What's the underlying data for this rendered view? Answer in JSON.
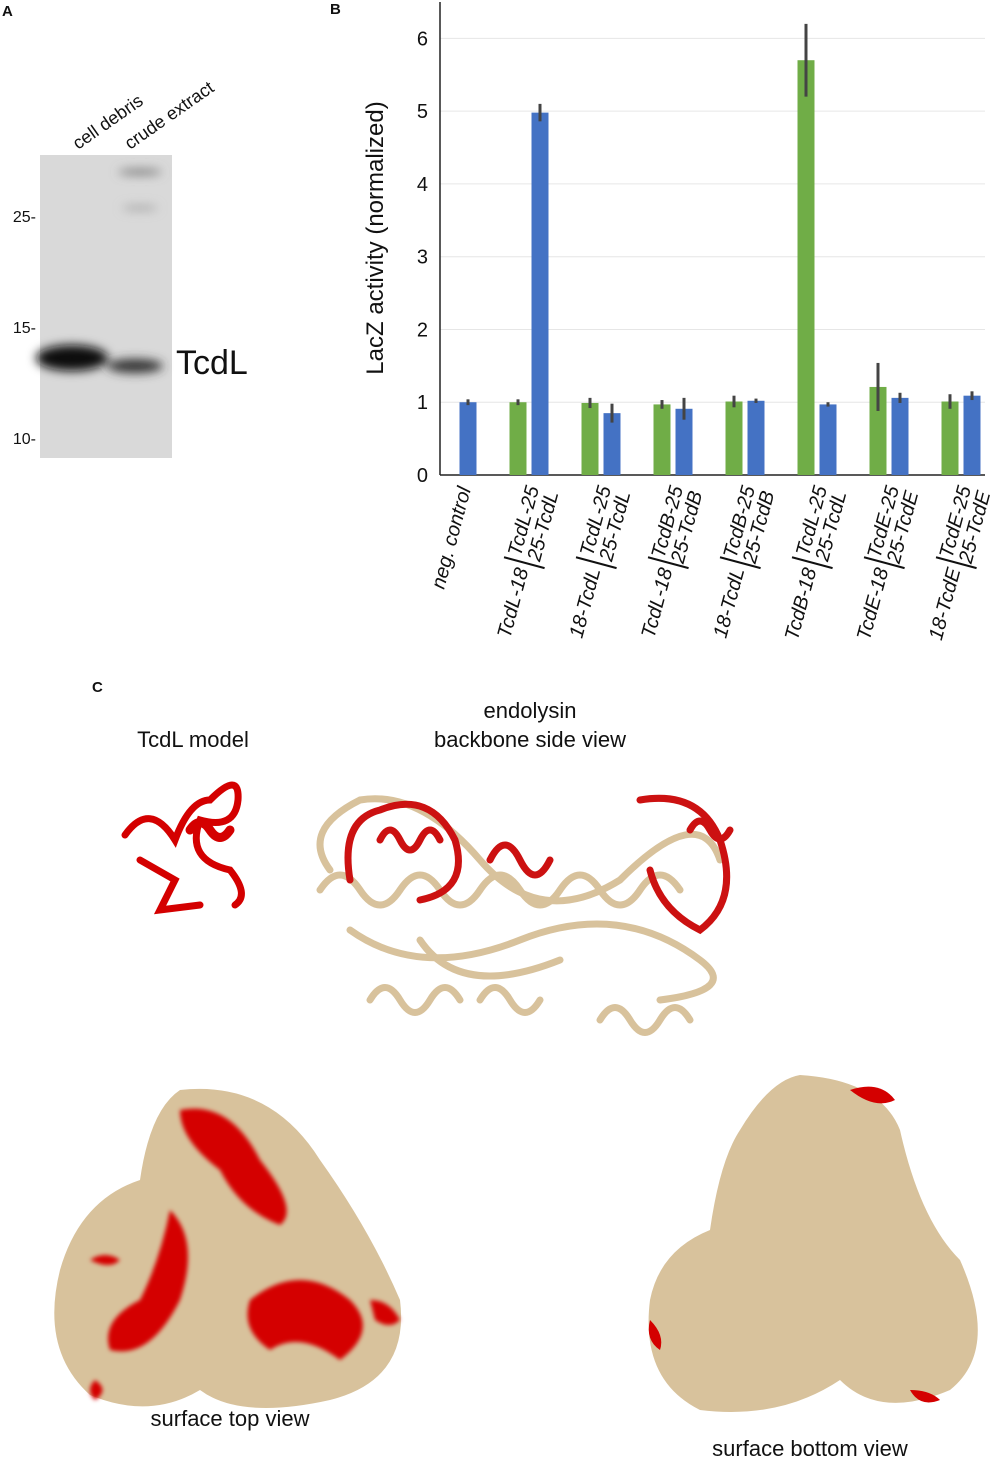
{
  "panel_a": {
    "label": "A",
    "lanes": [
      "cell debris",
      "crude extract"
    ],
    "markers": [
      "25-",
      "15-",
      "10-"
    ],
    "band_label": "TcdL"
  },
  "chart_data": {
    "type": "bar",
    "panel_label": "B",
    "ylabel": "LacZ activity (normalized)",
    "categories": [
      "neg. control",
      "TcdL-18",
      "18-TcdL",
      "TcdL-18",
      "18-TcdL",
      "TcdB-18",
      "TcdE-18",
      "18-TcdE"
    ],
    "sublabels": [
      [],
      [
        "TcdL-25",
        "25-TcdL"
      ],
      [
        "TcdL-25",
        "25-TcdL"
      ],
      [
        "TcdB-25",
        "25-TcdB"
      ],
      [
        "TcdB-25",
        "25-TcdB"
      ],
      [
        "TcdL-25",
        "25-TcdL"
      ],
      [
        "TcdE-25",
        "25-TcdE"
      ],
      [
        "TcdE-25",
        "25-TcdE"
      ]
    ],
    "series": [
      {
        "color": "#70ad47",
        "values": [
          null,
          1.0,
          0.99,
          0.97,
          1.01,
          5.7,
          1.21,
          1.01
        ],
        "errors": [
          null,
          0.04,
          0.07,
          0.06,
          0.08,
          0.5,
          0.33,
          0.1
        ]
      },
      {
        "color": "#4472c4",
        "values": [
          1.0,
          4.98,
          0.85,
          0.91,
          1.02,
          0.97,
          1.06,
          1.09
        ],
        "errors": [
          0.04,
          0.12,
          0.13,
          0.15,
          0.03,
          0.03,
          0.07,
          0.06
        ]
      }
    ],
    "ylim": [
      0,
      6.5
    ],
    "yticks": [
      0,
      1,
      2,
      3,
      4,
      5,
      6
    ],
    "grid": true
  },
  "panel_c": {
    "label": "C",
    "model_title": "TcdL model",
    "side_title": [
      "endolysin",
      "backbone side view"
    ],
    "top_title": "surface top view",
    "bottom_title": "surface bottom view"
  }
}
